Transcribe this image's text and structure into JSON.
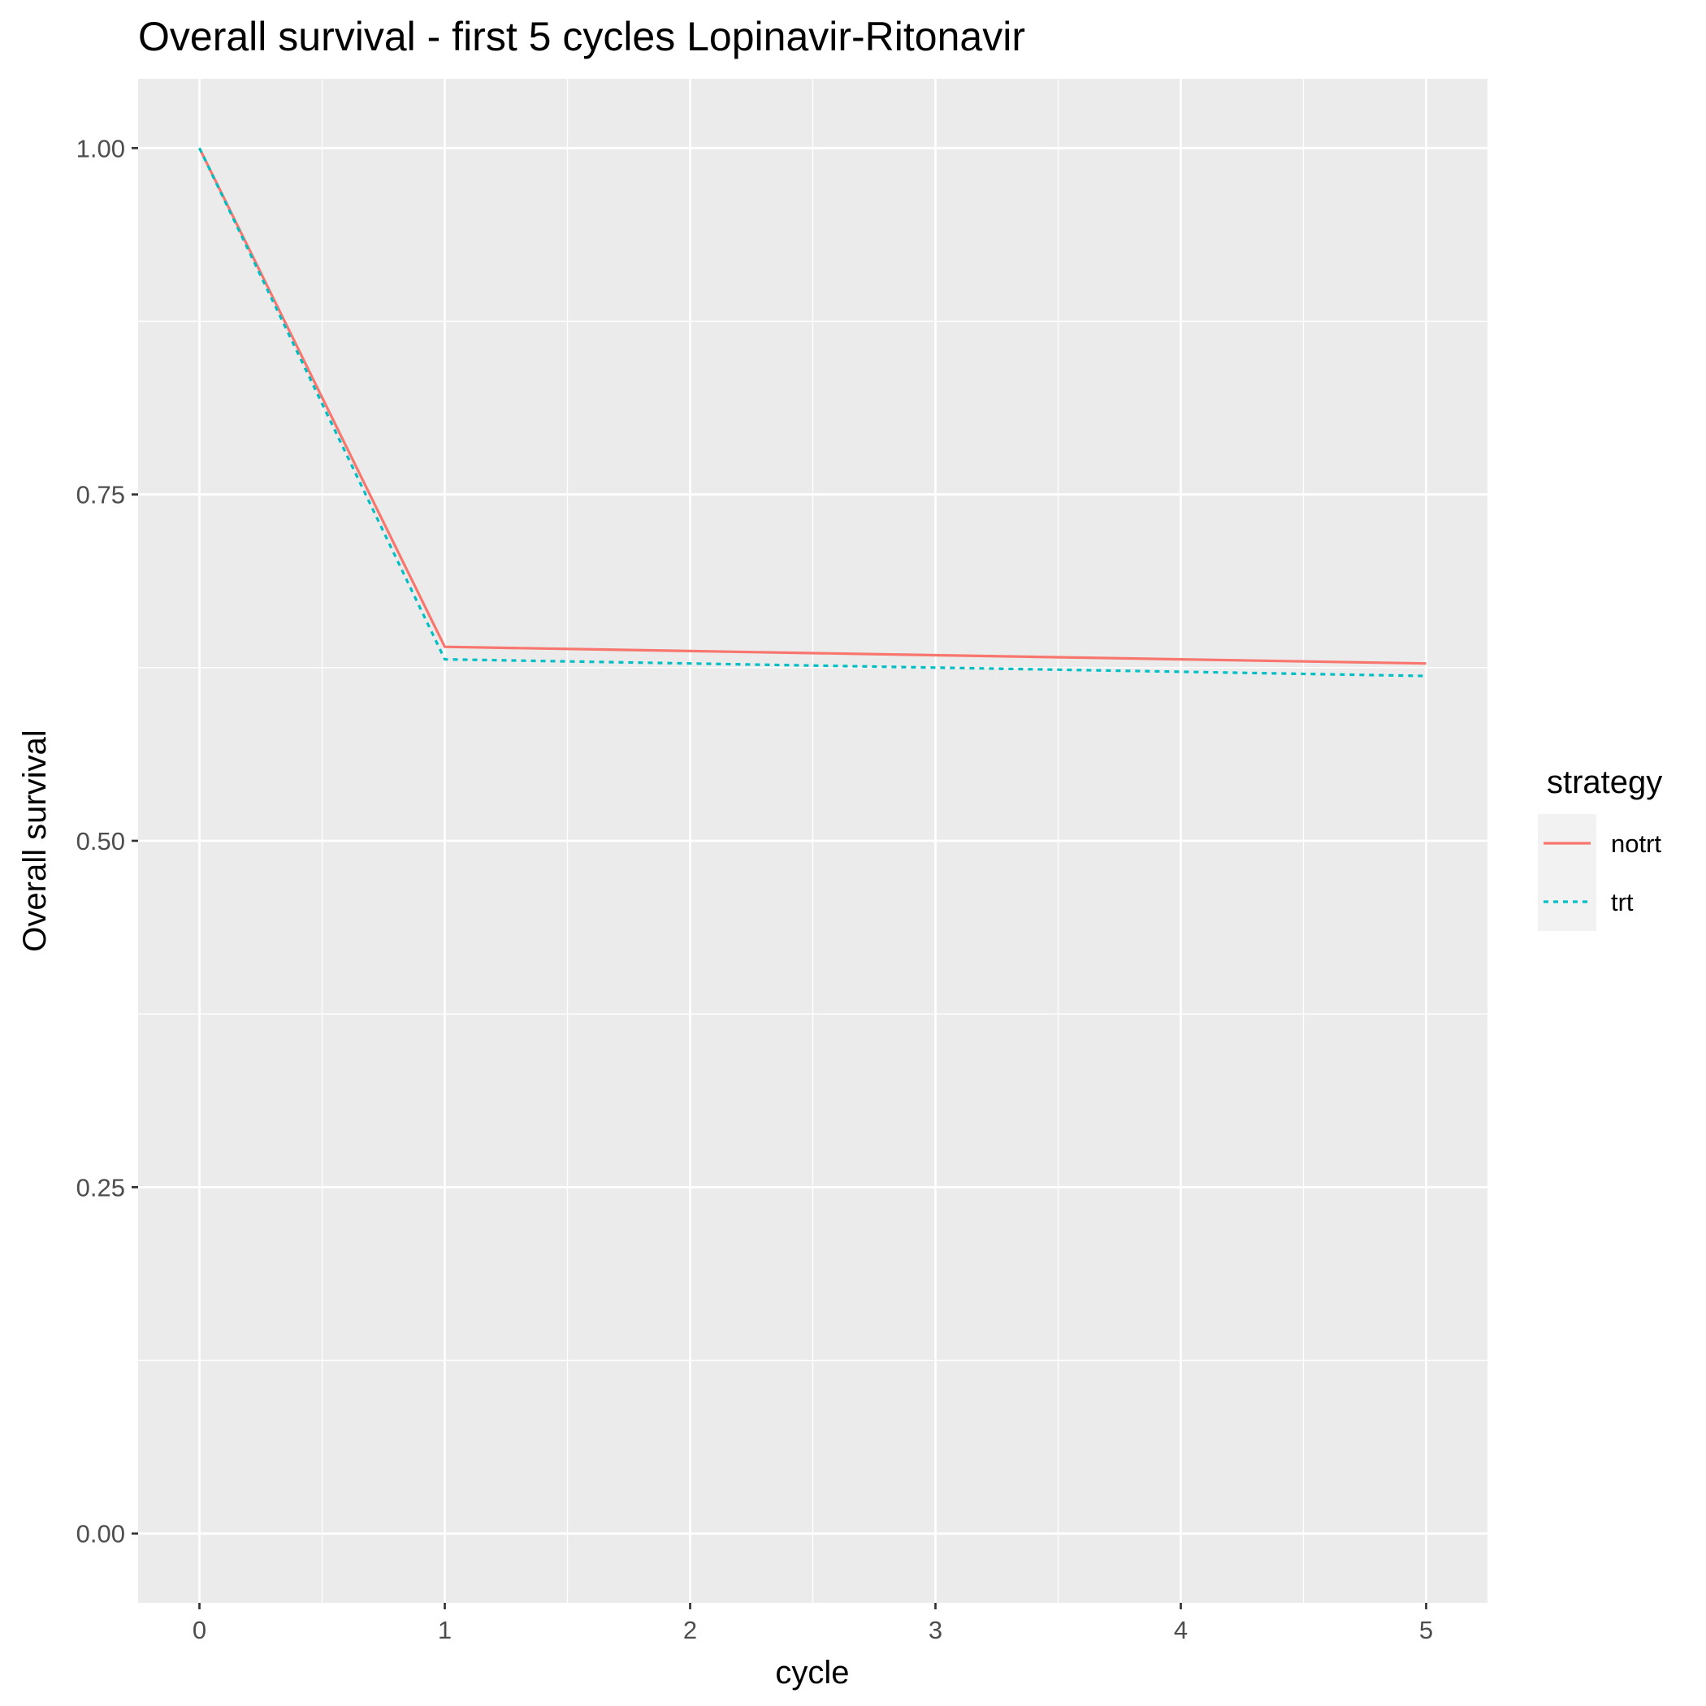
{
  "chart_data": {
    "type": "line",
    "title": "Overall survival - first 5 cycles Lopinavir-Ritonavir",
    "xlabel": "cycle",
    "ylabel": "Overall survival",
    "x": [
      0,
      1,
      2,
      3,
      4,
      5
    ],
    "x_ticks": [
      "0",
      "1",
      "2",
      "3",
      "4",
      "5"
    ],
    "y_ticks": [
      "0.00",
      "0.25",
      "0.50",
      "0.75",
      "1.00"
    ],
    "xlim": [
      -0.25,
      5.25
    ],
    "ylim": [
      -0.05,
      1.05
    ],
    "grid": true,
    "legend": {
      "title": "strategy",
      "position": "right"
    },
    "series": [
      {
        "name": "notrt",
        "values": [
          1.0,
          0.64,
          0.637,
          0.634,
          0.631,
          0.628
        ],
        "color": "#F8766D",
        "dash": "solid"
      },
      {
        "name": "trt",
        "values": [
          1.0,
          0.631,
          0.628,
          0.625,
          0.622,
          0.619
        ],
        "color": "#00BFC4",
        "dash": "dotted"
      }
    ]
  }
}
